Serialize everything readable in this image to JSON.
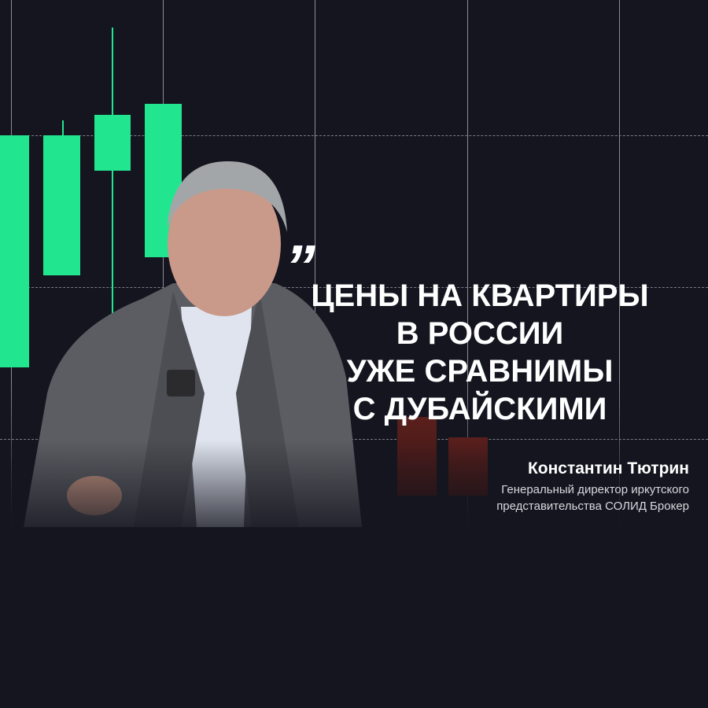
{
  "quote": {
    "mark": "”",
    "lines": [
      "ЦЕНЫ НА КВАРТИРЫ",
      "В РОССИИ",
      "УЖЕ СРАВНИМЫ",
      "С ДУБАЙСКИМИ"
    ]
  },
  "speaker": {
    "name": "Константин Тютрин",
    "role_lines": [
      "Генеральный директор иркутского",
      "представительства СОЛИД Брокер"
    ]
  },
  "colors": {
    "background": "#14151f",
    "candle_up": "#22e68f",
    "candle_down": "#5a1f1c",
    "text": "#ffffff"
  }
}
